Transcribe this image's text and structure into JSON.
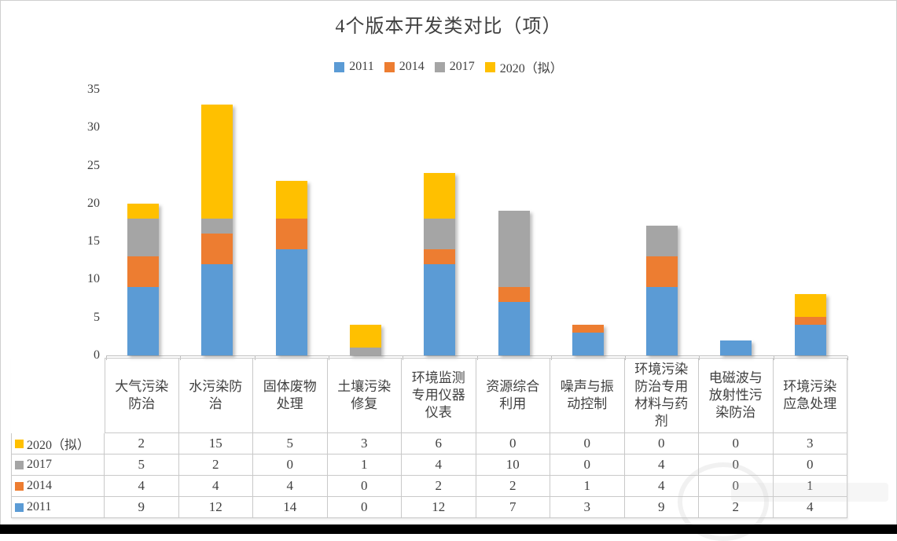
{
  "chart_data": {
    "type": "bar",
    "stacked": true,
    "title": "4个版本开发类对比（项）",
    "xlabel": "",
    "ylabel": "",
    "ylim": [
      0,
      35
    ],
    "y_ticks": [
      0,
      5,
      10,
      15,
      20,
      25,
      30,
      35
    ],
    "grid": false,
    "legend_position": "top",
    "categories": [
      "大气污染防治",
      "水污染防治",
      "固体废物处理",
      "土壤污染修复",
      "环境监测专用仪器仪表",
      "资源综合利用",
      "噪声与振动控制",
      "环境污染防治专用材料与药剂",
      "电磁波与放射性污染防治",
      "环境污染应急处理"
    ],
    "series": [
      {
        "name": "2011",
        "color": "#5B9BD5",
        "values": [
          9,
          12,
          14,
          0,
          12,
          7,
          3,
          9,
          2,
          4
        ]
      },
      {
        "name": "2014",
        "color": "#ED7D31",
        "values": [
          4,
          4,
          4,
          0,
          2,
          2,
          1,
          4,
          0,
          1
        ]
      },
      {
        "name": "2017",
        "color": "#A5A5A5",
        "values": [
          5,
          2,
          0,
          1,
          4,
          10,
          0,
          4,
          0,
          0
        ]
      },
      {
        "name": "2020（拟）",
        "color": "#FFC000",
        "values": [
          2,
          15,
          5,
          3,
          6,
          0,
          0,
          0,
          0,
          3
        ]
      }
    ],
    "data_table_row_order": [
      "2020（拟）",
      "2017",
      "2014",
      "2011"
    ]
  },
  "style_colors": {
    "text": "#404040",
    "axis_line": "#BFBFBF",
    "table_border": "#C9C9C9",
    "bottom_bar": "#000000"
  }
}
